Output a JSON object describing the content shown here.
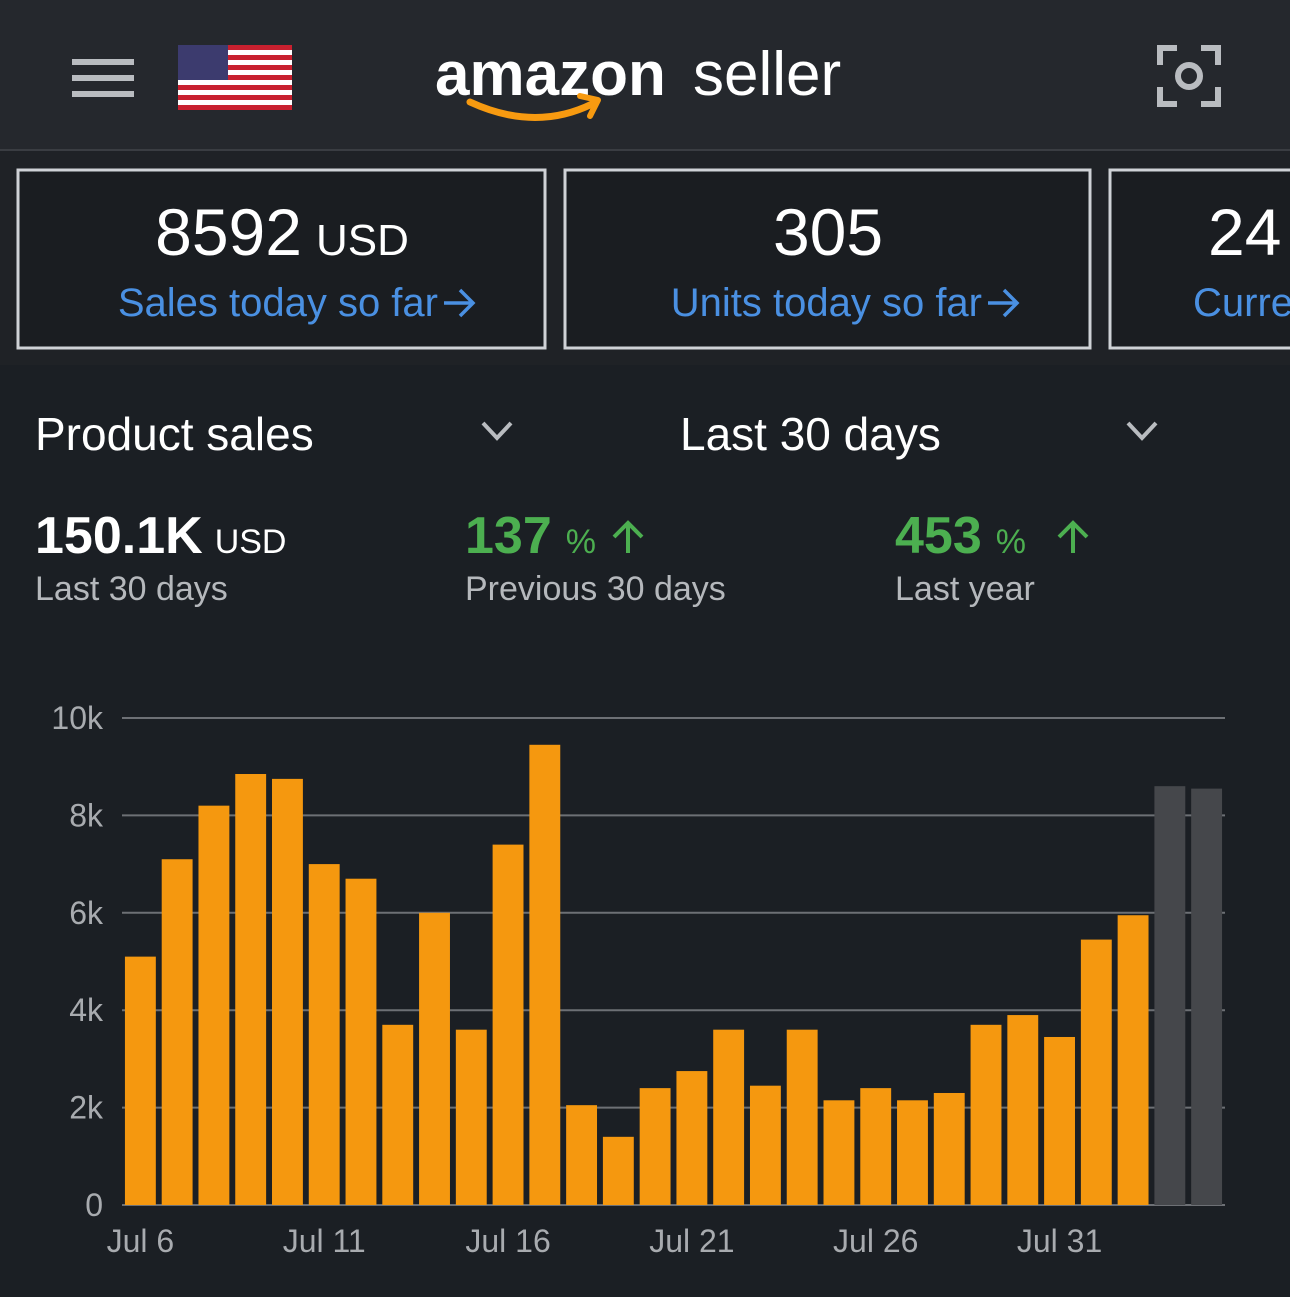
{
  "header": {
    "logo_word": "amazon",
    "logo_suffix": "seller"
  },
  "tiles": [
    {
      "value": "8592",
      "unit": "USD",
      "label": "Sales today so far"
    },
    {
      "value": "305",
      "label": "Units today so far"
    },
    {
      "value": "24",
      "label": "Curre"
    }
  ],
  "filters": {
    "metric": "Product sales",
    "period": "Last 30 days"
  },
  "summary": [
    {
      "value": "150.1K",
      "unit": "USD",
      "label": "Last 30 days"
    },
    {
      "value": "137",
      "unit": "%",
      "label": "Previous 30 days"
    },
    {
      "value": "453",
      "unit": "%",
      "label": "Last year"
    }
  ],
  "chart_data": {
    "type": "bar",
    "categories": [
      "Jul 6",
      null,
      null,
      null,
      null,
      "Jul 11",
      null,
      null,
      null,
      null,
      "Jul 16",
      null,
      null,
      null,
      null,
      "Jul 21",
      null,
      null,
      null,
      null,
      "Jul 26",
      null,
      null,
      null,
      null,
      "Jul 31",
      null,
      null,
      null,
      null
    ],
    "values": [
      5100,
      7100,
      8200,
      8850,
      8750,
      7000,
      6700,
      3700,
      6000,
      3600,
      7400,
      9450,
      2050,
      1400,
      2400,
      2750,
      3600,
      2450,
      3600,
      2150,
      2400,
      2150,
      2300,
      3700,
      3900,
      3450,
      5450,
      5950,
      8600,
      8550
    ],
    "colors": [
      "#f5980f",
      "#f5980f",
      "#f5980f",
      "#f5980f",
      "#f5980f",
      "#f5980f",
      "#f5980f",
      "#f5980f",
      "#f5980f",
      "#f5980f",
      "#f5980f",
      "#f5980f",
      "#f5980f",
      "#f5980f",
      "#f5980f",
      "#f5980f",
      "#f5980f",
      "#f5980f",
      "#f5980f",
      "#f5980f",
      "#f5980f",
      "#f5980f",
      "#f5980f",
      "#f5980f",
      "#f5980f",
      "#f5980f",
      "#f5980f",
      "#f5980f",
      "#45474b",
      "#45474b"
    ],
    "ylim": [
      0,
      10000
    ],
    "yticks": [
      0,
      {
        "value": 2000,
        "label": "2k"
      },
      {
        "value": 4000,
        "label": "4k"
      },
      {
        "value": 6000,
        "label": "6k"
      },
      {
        "value": 8000,
        "label": "8k"
      },
      {
        "value": 10000,
        "label": "10k"
      }
    ],
    "grid": true
  }
}
